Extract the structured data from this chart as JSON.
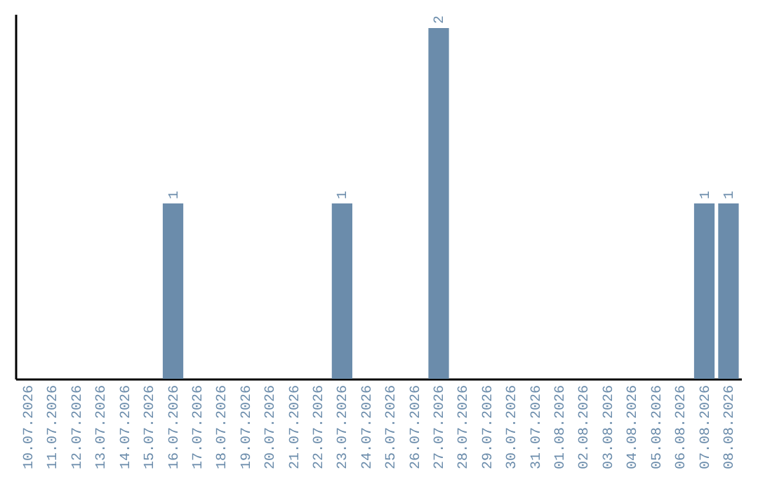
{
  "chart_data": {
    "type": "bar",
    "categories": [
      "10.07.2026",
      "11.07.2026",
      "12.07.2026",
      "13.07.2026",
      "14.07.2026",
      "15.07.2026",
      "16.07.2026",
      "17.07.2026",
      "18.07.2026",
      "19.07.2026",
      "20.07.2026",
      "21.07.2026",
      "22.07.2026",
      "23.07.2026",
      "24.07.2026",
      "25.07.2026",
      "26.07.2026",
      "27.07.2026",
      "28.07.2026",
      "29.07.2026",
      "30.07.2026",
      "31.07.2026",
      "01.08.2026",
      "02.08.2026",
      "03.08.2026",
      "04.08.2026",
      "05.08.2026",
      "06.08.2026",
      "07.08.2026",
      "08.08.2026"
    ],
    "values": [
      0,
      0,
      0,
      0,
      0,
      0,
      1,
      0,
      0,
      0,
      0,
      0,
      0,
      1,
      0,
      0,
      0,
      2,
      0,
      0,
      0,
      0,
      0,
      0,
      0,
      0,
      0,
      0,
      1,
      1
    ],
    "value_labels": [
      null,
      null,
      null,
      null,
      null,
      null,
      "1",
      null,
      null,
      null,
      null,
      null,
      null,
      "1",
      null,
      null,
      null,
      "2",
      null,
      null,
      null,
      null,
      null,
      null,
      null,
      null,
      null,
      null,
      "1",
      "1"
    ],
    "color": "#6b8cab",
    "tick_labels": "x",
    "grid": false
  }
}
